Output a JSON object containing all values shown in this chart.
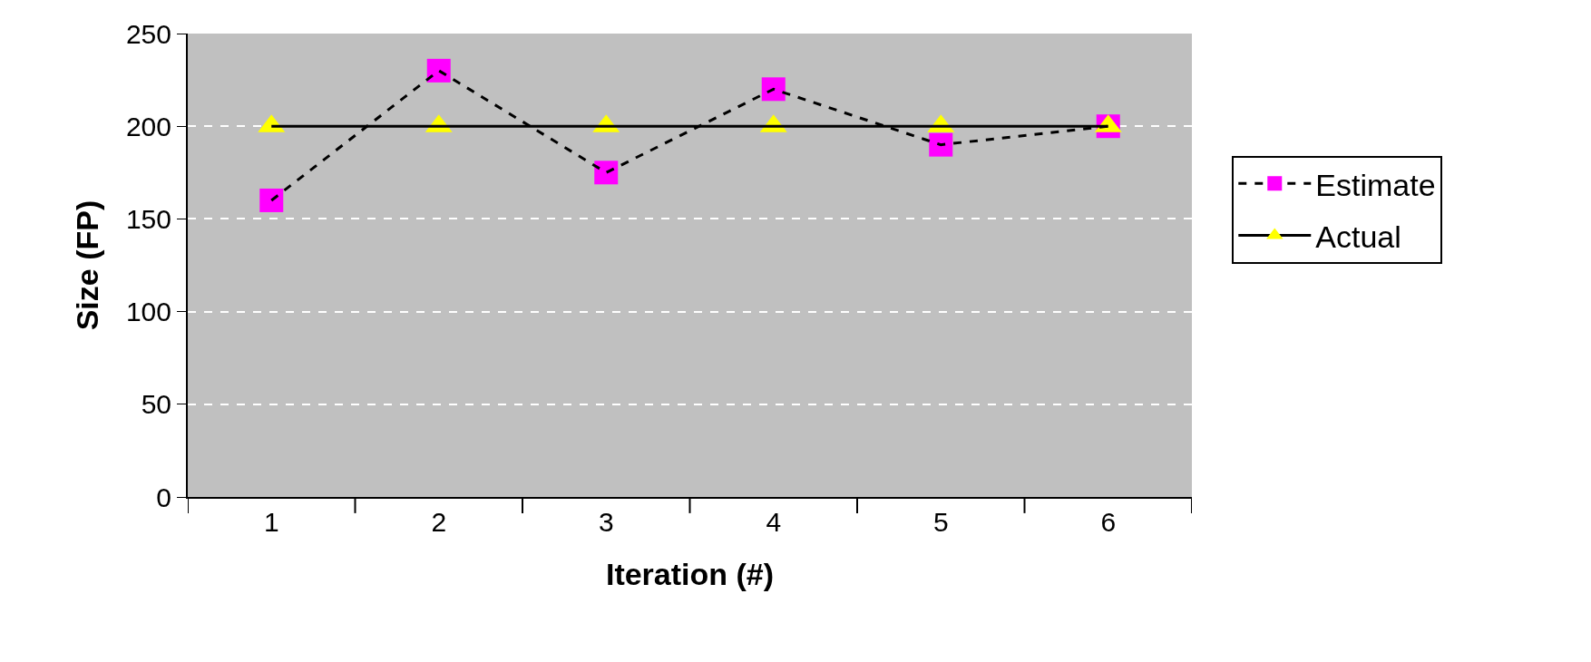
{
  "chart_data": {
    "type": "line",
    "xlabel": "Iteration (#)",
    "ylabel": "Size (FP)",
    "categories": [
      "1",
      "2",
      "3",
      "4",
      "5",
      "6"
    ],
    "series": [
      {
        "name": "Estimate",
        "color": "#ff00ff",
        "values": [
          160,
          230,
          175,
          220,
          190,
          200
        ],
        "marker": "square",
        "line_style": "dashed"
      },
      {
        "name": "Actual",
        "color": "#ffff00",
        "values": [
          200,
          200,
          200,
          200,
          200,
          200
        ],
        "marker": "triangle",
        "line_style": "solid"
      }
    ],
    "ylim": [
      0,
      250
    ],
    "yticks": [
      0,
      50,
      100,
      150,
      200,
      250
    ],
    "grid": "y",
    "legend": "right"
  }
}
